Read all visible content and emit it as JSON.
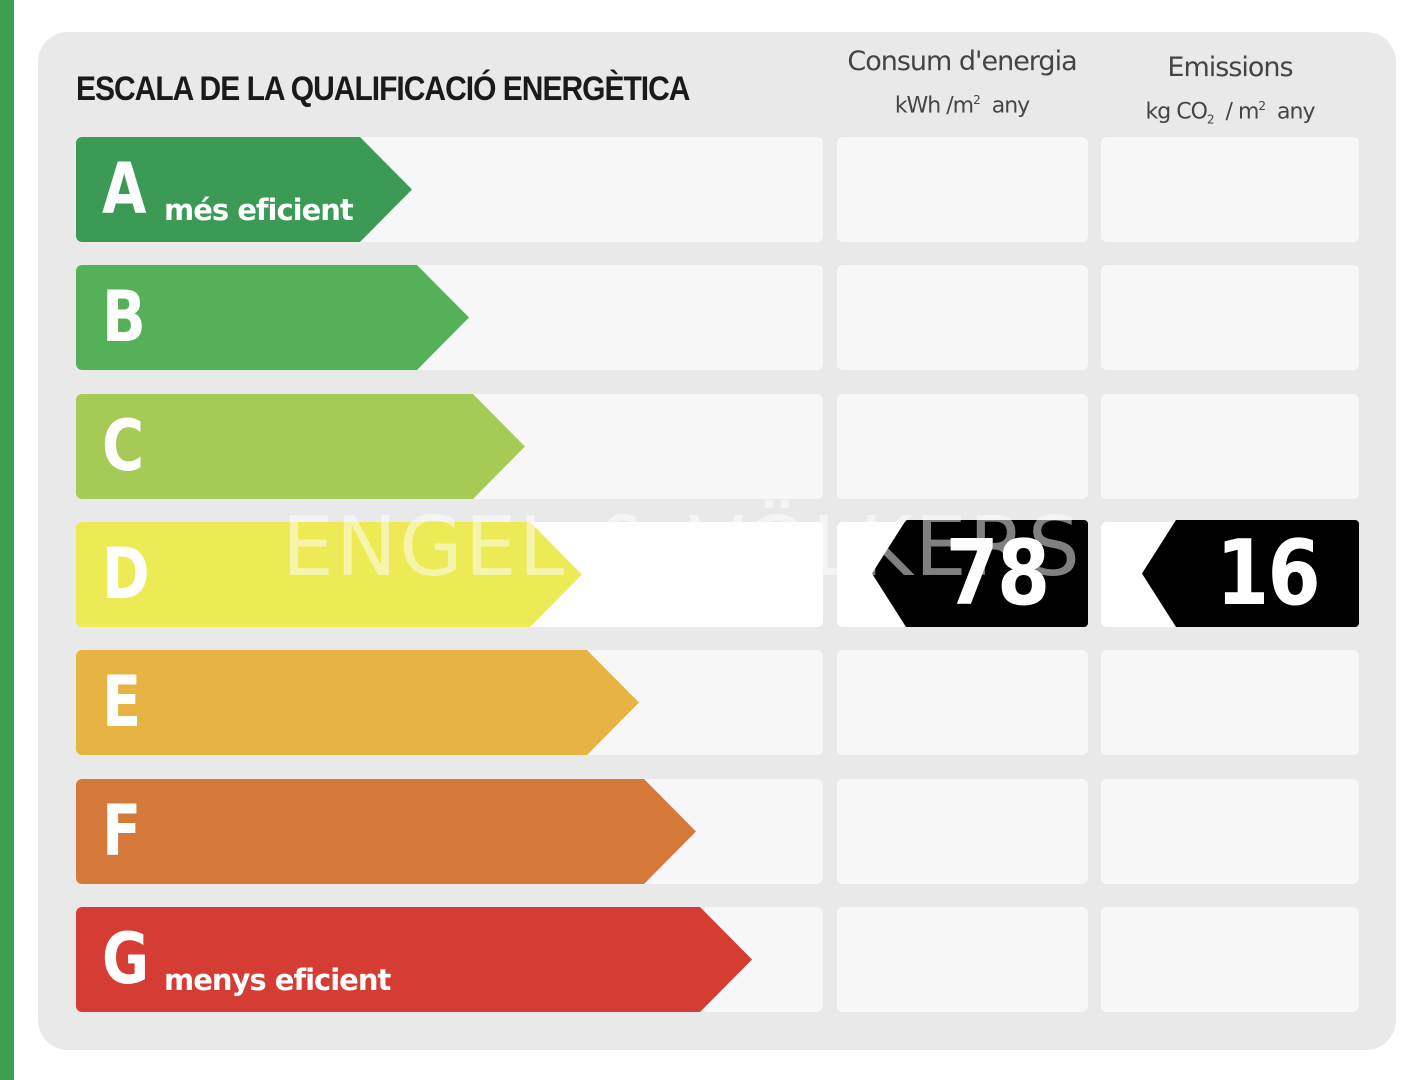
{
  "title": "ESCALA DE LA QUALIFICACIÓ ENERGÈTICA",
  "columns": {
    "energy": {
      "heading": "Consum d'energia",
      "unit_prefix": "kWh /m",
      "unit_sup": "2",
      "unit_suffix": "any"
    },
    "emissions": {
      "heading": "Emissions",
      "unit_prefix": "kg CO",
      "unit_sub": "2",
      "unit_mid": "/ m",
      "unit_sup": "2",
      "unit_suffix": "any"
    }
  },
  "classes": [
    {
      "letter": "A",
      "caption": "més eficient",
      "color": "#3a9a56"
    },
    {
      "letter": "B",
      "caption": "",
      "color": "#55b158"
    },
    {
      "letter": "C",
      "caption": "",
      "color": "#a6ca56"
    },
    {
      "letter": "D",
      "caption": "",
      "color": "#ecea55"
    },
    {
      "letter": "E",
      "caption": "",
      "color": "#e7b443"
    },
    {
      "letter": "F",
      "caption": "",
      "color": "#d5793a"
    },
    {
      "letter": "G",
      "caption": "menys eficient",
      "color": "#d53c33"
    }
  ],
  "rating": {
    "class": "D",
    "energy_value": "78",
    "emissions_value": "16"
  },
  "watermark": "ENGEL & VÖLKERS",
  "accent_edge_color": "#3aa04e"
}
